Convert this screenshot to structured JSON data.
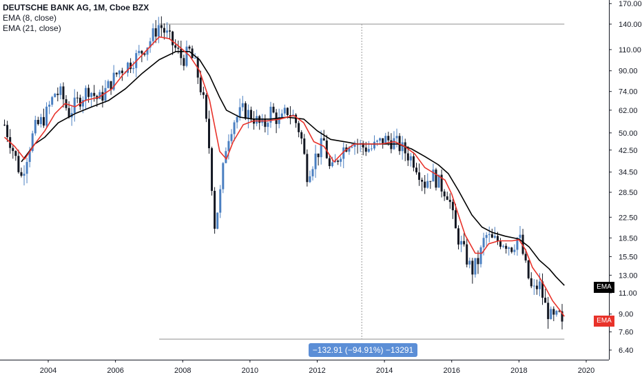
{
  "legend": {
    "title": "DEUTSCHE BANK AG, 1M, Cboe BZX",
    "ema8": "EMA (8, close)",
    "ema21": "EMA (21, close)"
  },
  "tags": {
    "ema21": {
      "label": "EMA",
      "color": "#000000"
    },
    "ema8": {
      "label": "EMA",
      "color": "#e8322a"
    }
  },
  "measure_label": "−132.91 (−94.91%) −13291",
  "colors": {
    "up": "#4a7fc1",
    "down": "#131722",
    "ema8": "#e8322a",
    "ema21": "#000000",
    "measure": "#5b8ed6"
  },
  "chart_data": {
    "type": "line",
    "y_scale": "log",
    "x_range": [
      2002.6,
      2021.5
    ],
    "y_ticks": [
      6.4,
      7.6,
      9.0,
      11.0,
      13.0,
      15.5,
      18.5,
      22.5,
      28.5,
      34.5,
      42.5,
      50.0,
      62.0,
      74.0,
      90.0,
      110.0,
      140.0,
      170.0
    ],
    "x_ticks": [
      "2004",
      "2006",
      "2008",
      "2010",
      "2012",
      "2014",
      "2016",
      "2018",
      "2020"
    ],
    "measure": {
      "from_date": 2007.3,
      "to_date": 2019.35,
      "from_price": 140.0,
      "to_price": 7.1
    },
    "price_path": [
      [
        2002.7,
        54
      ],
      [
        2002.9,
        45
      ],
      [
        2003.2,
        33
      ],
      [
        2003.4,
        42
      ],
      [
        2003.6,
        52
      ],
      [
        2003.9,
        58
      ],
      [
        2004.2,
        73
      ],
      [
        2004.4,
        72
      ],
      [
        2004.6,
        60
      ],
      [
        2004.9,
        68
      ],
      [
        2005.2,
        76
      ],
      [
        2005.5,
        68
      ],
      [
        2005.8,
        78
      ],
      [
        2006.1,
        90
      ],
      [
        2006.4,
        96
      ],
      [
        2006.7,
        105
      ],
      [
        2007.0,
        118
      ],
      [
        2007.3,
        140
      ],
      [
        2007.5,
        128
      ],
      [
        2007.8,
        110
      ],
      [
        2008.0,
        100
      ],
      [
        2008.2,
        108
      ],
      [
        2008.4,
        92
      ],
      [
        2008.6,
        70
      ],
      [
        2008.8,
        42
      ],
      [
        2008.95,
        21
      ],
      [
        2009.1,
        27
      ],
      [
        2009.3,
        46
      ],
      [
        2009.5,
        56
      ],
      [
        2009.8,
        62
      ],
      [
        2010.1,
        58
      ],
      [
        2010.4,
        52
      ],
      [
        2010.6,
        62
      ],
      [
        2010.9,
        55
      ],
      [
        2011.1,
        62
      ],
      [
        2011.3,
        58
      ],
      [
        2011.5,
        50
      ],
      [
        2011.7,
        34
      ],
      [
        2011.95,
        40
      ],
      [
        2012.2,
        46
      ],
      [
        2012.4,
        34
      ],
      [
        2012.7,
        42
      ],
      [
        2013.0,
        47
      ],
      [
        2013.3,
        44
      ],
      [
        2013.6,
        43
      ],
      [
        2014.0,
        47
      ],
      [
        2014.3,
        46
      ],
      [
        2014.6,
        42
      ],
      [
        2014.9,
        38
      ],
      [
        2015.2,
        31
      ],
      [
        2015.4,
        34
      ],
      [
        2015.7,
        30
      ],
      [
        2015.9,
        28
      ],
      [
        2016.1,
        20
      ],
      [
        2016.3,
        17
      ],
      [
        2016.6,
        13.5
      ],
      [
        2016.8,
        15
      ],
      [
        2017.0,
        19
      ],
      [
        2017.2,
        18
      ],
      [
        2017.5,
        18
      ],
      [
        2017.8,
        17
      ],
      [
        2018.0,
        19
      ],
      [
        2018.2,
        14
      ],
      [
        2018.4,
        11
      ],
      [
        2018.6,
        12
      ],
      [
        2018.8,
        9.5
      ],
      [
        2019.0,
        8.5
      ],
      [
        2019.2,
        8.8
      ],
      [
        2019.35,
        7.3
      ]
    ],
    "ema8": [
      [
        2002.7,
        48
      ],
      [
        2003.0,
        44
      ],
      [
        2003.3,
        39
      ],
      [
        2003.6,
        45
      ],
      [
        2003.9,
        51
      ],
      [
        2004.2,
        60
      ],
      [
        2004.5,
        66
      ],
      [
        2004.8,
        64
      ],
      [
        2005.1,
        68
      ],
      [
        2005.5,
        70
      ],
      [
        2005.9,
        76
      ],
      [
        2006.2,
        86
      ],
      [
        2006.6,
        98
      ],
      [
        2007.0,
        112
      ],
      [
        2007.3,
        124
      ],
      [
        2007.6,
        122
      ],
      [
        2007.9,
        113
      ],
      [
        2008.2,
        104
      ],
      [
        2008.5,
        90
      ],
      [
        2008.8,
        68
      ],
      [
        2009.1,
        42
      ],
      [
        2009.3,
        39
      ],
      [
        2009.5,
        46
      ],
      [
        2009.8,
        54
      ],
      [
        2010.1,
        56
      ],
      [
        2010.5,
        56
      ],
      [
        2010.9,
        57
      ],
      [
        2011.3,
        59
      ],
      [
        2011.6,
        55
      ],
      [
        2011.9,
        46
      ],
      [
        2012.2,
        44
      ],
      [
        2012.5,
        38
      ],
      [
        2012.8,
        42
      ],
      [
        2013.1,
        45
      ],
      [
        2013.5,
        45
      ],
      [
        2013.9,
        45
      ],
      [
        2014.3,
        46
      ],
      [
        2014.6,
        44
      ],
      [
        2014.9,
        41
      ],
      [
        2015.2,
        36
      ],
      [
        2015.5,
        34
      ],
      [
        2015.8,
        32
      ],
      [
        2016.0,
        28
      ],
      [
        2016.2,
        23
      ],
      [
        2016.4,
        19
      ],
      [
        2016.7,
        16
      ],
      [
        2016.9,
        16
      ],
      [
        2017.1,
        17.5
      ],
      [
        2017.4,
        18
      ],
      [
        2017.8,
        18
      ],
      [
        2018.0,
        18.2
      ],
      [
        2018.2,
        16.5
      ],
      [
        2018.4,
        14
      ],
      [
        2018.6,
        12.8
      ],
      [
        2018.8,
        11.5
      ],
      [
        2019.0,
        10.2
      ],
      [
        2019.2,
        9.4
      ],
      [
        2019.35,
        8.8
      ]
    ],
    "ema21": [
      [
        2003.2,
        38
      ],
      [
        2003.6,
        45
      ],
      [
        2003.9,
        48
      ],
      [
        2004.3,
        55
      ],
      [
        2004.8,
        60
      ],
      [
        2005.3,
        64
      ],
      [
        2005.8,
        68
      ],
      [
        2006.3,
        76
      ],
      [
        2006.8,
        88
      ],
      [
        2007.3,
        100
      ],
      [
        2007.8,
        108
      ],
      [
        2008.2,
        108
      ],
      [
        2008.5,
        100
      ],
      [
        2008.8,
        86
      ],
      [
        2009.1,
        70
      ],
      [
        2009.3,
        62
      ],
      [
        2009.7,
        58
      ],
      [
        2010.1,
        57
      ],
      [
        2010.6,
        57
      ],
      [
        2011.1,
        58
      ],
      [
        2011.6,
        57
      ],
      [
        2012.0,
        51
      ],
      [
        2012.4,
        47
      ],
      [
        2012.8,
        46
      ],
      [
        2013.2,
        45
      ],
      [
        2013.6,
        45
      ],
      [
        2014.0,
        45
      ],
      [
        2014.4,
        45
      ],
      [
        2014.8,
        43
      ],
      [
        2015.2,
        40
      ],
      [
        2015.6,
        37
      ],
      [
        2015.9,
        34
      ],
      [
        2016.2,
        29
      ],
      [
        2016.6,
        23
      ],
      [
        2016.9,
        20.5
      ],
      [
        2017.2,
        19.5
      ],
      [
        2017.6,
        18.8
      ],
      [
        2018.0,
        18.3
      ],
      [
        2018.3,
        17
      ],
      [
        2018.6,
        15
      ],
      [
        2018.9,
        13.8
      ],
      [
        2019.1,
        12.8
      ],
      [
        2019.35,
        11.8
      ]
    ]
  }
}
